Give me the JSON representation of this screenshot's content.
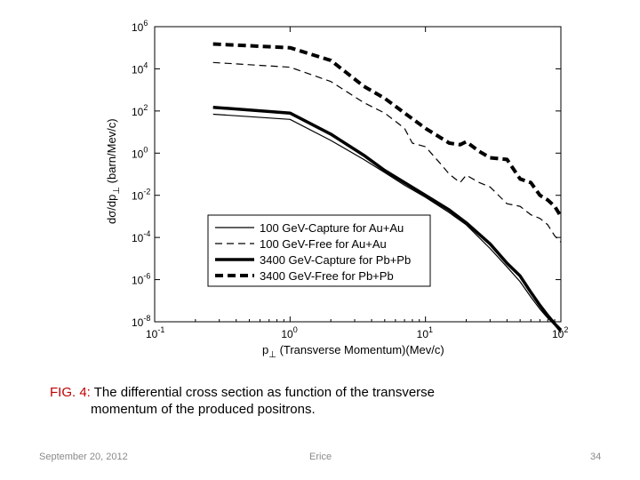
{
  "chart_data": {
    "type": "line",
    "xscale": "log",
    "yscale": "log",
    "xlim": [
      0.1,
      100
    ],
    "ylim": [
      1e-08,
      1000000.0
    ],
    "xticks": [
      0.1,
      1,
      10,
      100
    ],
    "yticks": [
      1e-08,
      1e-06,
      0.0001,
      0.01,
      1,
      100,
      10000.0,
      1000000.0
    ],
    "xtick_base": "10",
    "xtick_exponents": [
      "-1",
      "0",
      "1",
      "2"
    ],
    "ytick_base": "10",
    "ytick_exponents": [
      "-8",
      "-6",
      "-4",
      "-2",
      "0",
      "2",
      "4",
      "6"
    ],
    "xlabel_prefix": "p",
    "xlabel_sub": "⊥",
    "xlabel_rest": " (Transverse Momentum)(Mev/c)",
    "ylabel_prefix": "dσ/dp",
    "ylabel_sub": "⊥",
    "ylabel_rest": " (barn/Mev/c)",
    "legend_position": "lower-right",
    "grid": false,
    "series": [
      {
        "name": "100 GeV-Capture for Au+Au",
        "style": "thin-solid",
        "x": [
          0.27,
          1.0,
          2.0,
          3.5,
          5.0,
          7.0,
          10,
          15,
          20,
          30,
          40,
          50,
          60,
          70,
          80,
          90,
          100
        ],
        "y": [
          70,
          40,
          4,
          0.5,
          0.12,
          0.03,
          0.008,
          0.0015,
          0.0004,
          3e-05,
          4e-06,
          8e-07,
          1.5e-07,
          4e-08,
          1.5e-08,
          7e-09,
          3e-09
        ]
      },
      {
        "name": "100 GeV-Free for Au+Au",
        "style": "thin-dashed",
        "x": [
          0.27,
          1.0,
          2.0,
          3.5,
          5.0,
          7.0,
          8.0,
          10,
          13,
          15,
          18,
          20,
          25,
          30,
          40,
          50,
          60,
          70,
          80,
          90,
          100
        ],
        "y": [
          20000,
          12000,
          2500,
          250,
          80,
          15,
          3,
          2,
          0.3,
          0.1,
          0.04,
          0.09,
          0.04,
          0.025,
          0.004,
          0.003,
          0.0012,
          0.0008,
          0.0004,
          0.00012,
          6e-05
        ]
      },
      {
        "name": "3400 GeV-Capture for Pb+Pb",
        "style": "thick-solid",
        "x": [
          0.27,
          1.0,
          2.0,
          3.5,
          5.0,
          7.0,
          10,
          15,
          20,
          30,
          40,
          50,
          60,
          70,
          80,
          90,
          100
        ],
        "y": [
          150,
          80,
          8,
          0.8,
          0.15,
          0.04,
          0.01,
          0.002,
          0.0005,
          5e-05,
          6e-06,
          1.5e-06,
          2.5e-07,
          6e-08,
          2e-08,
          8e-09,
          4e-09
        ]
      },
      {
        "name": "3400 GeV-Free for Pb+Pb",
        "style": "thick-dashed",
        "x": [
          0.27,
          1.0,
          2.0,
          3.5,
          5.0,
          7.0,
          10,
          15,
          18,
          20,
          25,
          30,
          40,
          50,
          60,
          70,
          80,
          90,
          100
        ],
        "y": [
          150000,
          100000,
          25000,
          1500,
          400,
          80,
          15,
          3,
          2.5,
          3.5,
          1.2,
          0.6,
          0.5,
          0.06,
          0.04,
          0.01,
          0.006,
          0.003,
          0.001
        ]
      }
    ]
  },
  "caption": {
    "label": "FIG. 4:",
    "text_line1": " The differential cross section as function of the transverse",
    "text_line2": "momentum of the produced positrons."
  },
  "footer": {
    "date": "September 20, 2012",
    "center": "Erice",
    "page": "34"
  }
}
